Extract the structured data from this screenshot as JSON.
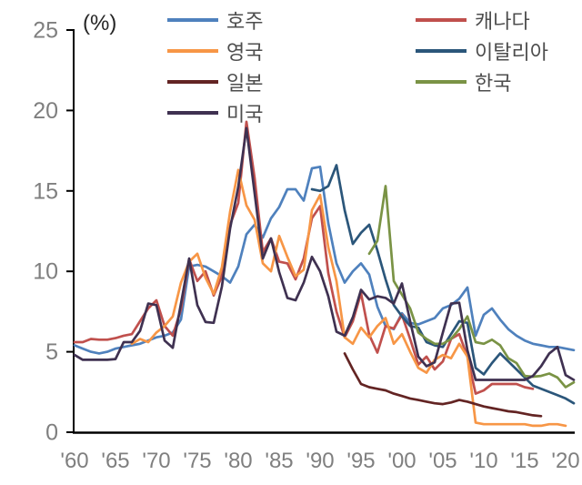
{
  "chart_data": {
    "type": "line",
    "title": "",
    "y_axis": {
      "unit_label": "(%)",
      "min": 0,
      "max": 25,
      "ticks": [
        0,
        5,
        10,
        15,
        20,
        25
      ]
    },
    "x_axis": {
      "tick_labels": [
        "'60",
        "'65",
        "'70",
        "'75",
        "'80",
        "'85",
        "'90",
        "'95",
        "'00",
        "'05",
        "'10",
        "'15",
        "'20"
      ],
      "tick_years": [
        1960,
        1965,
        1970,
        1975,
        1980,
        1985,
        1990,
        1995,
        2000,
        2005,
        2010,
        2015,
        2020
      ],
      "range": [
        1960,
        2021
      ]
    },
    "series": [
      {
        "id": "australia",
        "name": "호주",
        "color": "#4F81BD",
        "start_year": 1960,
        "values": [
          5.4,
          5.2,
          5.0,
          4.9,
          5.0,
          5.2,
          5.3,
          5.4,
          5.5,
          5.7,
          5.9,
          6.0,
          6.2,
          7.0,
          10.3,
          10.4,
          10.3,
          10.0,
          9.7,
          9.3,
          10.3,
          12.3,
          12.9,
          12.1,
          13.3,
          14.0,
          15.1,
          15.1,
          14.4,
          16.4,
          16.5,
          13.0,
          10.5,
          9.3,
          10.0,
          10.5,
          9.8,
          7.8,
          6.6,
          6.4,
          7.4,
          6.8,
          6.7,
          6.9,
          7.1,
          7.7,
          7.9,
          8.3,
          9.0,
          6.0,
          7.3,
          7.7,
          7.0,
          6.4,
          6.0,
          5.7,
          5.5,
          5.4,
          5.3,
          5.3,
          5.2,
          5.1
        ]
      },
      {
        "id": "canada",
        "name": "캐나다",
        "color": "#C0504D",
        "start_year": 1960,
        "values": [
          5.6,
          5.6,
          5.8,
          5.75,
          5.75,
          5.85,
          6.0,
          6.1,
          6.9,
          7.7,
          8.2,
          6.6,
          6.0,
          7.65,
          10.75,
          9.4,
          10.0,
          8.5,
          9.7,
          12.9,
          14.25,
          19.3,
          15.8,
          11.2,
          12.05,
          10.6,
          10.5,
          9.5,
          10.8,
          13.3,
          14.05,
          9.9,
          7.5,
          5.9,
          6.9,
          8.65,
          6.05,
          4.95,
          6.6,
          6.45,
          7.3,
          5.8,
          4.2,
          4.7,
          3.9,
          4.4,
          5.8,
          6.1,
          4.7,
          2.4,
          2.6,
          3.0,
          3.0,
          3.0,
          3.0,
          2.8,
          2.7
        ]
      },
      {
        "id": "uk",
        "name": "영국",
        "color": "#F79646",
        "start_year": 1967,
        "values": [
          5.5,
          5.8,
          5.6,
          6.2,
          6.6,
          7.2,
          9.3,
          10.6,
          11.1,
          9.6,
          8.6,
          10.25,
          13.7,
          16.3,
          14.1,
          13.2,
          10.5,
          10.0,
          12.2,
          10.9,
          9.7,
          10.1,
          13.8,
          14.75,
          11.5,
          9.4,
          5.9,
          5.5,
          6.5,
          5.9,
          6.6,
          7.1,
          5.5,
          6.1,
          5.0,
          4.0,
          3.7,
          4.5,
          4.8,
          4.6,
          5.5,
          4.7,
          0.6,
          0.5,
          0.5,
          0.5,
          0.5,
          0.5,
          0.5,
          0.4,
          0.4,
          0.5,
          0.5,
          0.4
        ]
      },
      {
        "id": "italy",
        "name": "이탈리아",
        "color": "#2B567A",
        "start_year": 1989,
        "values": [
          15.1,
          15.0,
          15.3,
          16.6,
          13.8,
          11.7,
          12.4,
          12.9,
          11.3,
          9.5,
          7.9,
          7.2,
          6.6,
          6.5,
          5.6,
          5.4,
          5.3,
          6.1,
          6.9,
          6.8,
          4.0,
          3.6,
          4.3,
          4.9,
          4.4,
          3.9,
          3.4,
          2.9,
          2.7,
          2.5,
          2.3,
          2.1,
          1.8
        ]
      },
      {
        "id": "japan",
        "name": "일본",
        "color": "#632423",
        "start_year": 1993,
        "values": [
          4.9,
          3.9,
          3.0,
          2.8,
          2.7,
          2.6,
          2.4,
          2.25,
          2.1,
          2.0,
          1.9,
          1.8,
          1.75,
          1.85,
          2.0,
          1.9,
          1.75,
          1.6,
          1.5,
          1.4,
          1.3,
          1.25,
          1.15,
          1.05,
          1.0
        ]
      },
      {
        "id": "korea",
        "name": "한국",
        "color": "#7A9345",
        "start_year": 1996,
        "values": [
          11.1,
          11.9,
          15.3,
          9.4,
          8.55,
          7.7,
          6.2,
          5.8,
          5.5,
          5.5,
          5.8,
          6.4,
          7.2,
          5.6,
          5.5,
          5.75,
          5.4,
          4.6,
          4.3,
          3.5,
          3.45,
          3.5,
          3.65,
          3.4,
          2.8,
          3.1
        ]
      },
      {
        "id": "usa",
        "name": "미국",
        "color": "#3F3151",
        "start_year": 1960,
        "values": [
          4.8,
          4.5,
          4.5,
          4.5,
          4.5,
          4.55,
          5.6,
          5.6,
          6.3,
          8.0,
          7.9,
          5.7,
          5.25,
          8.0,
          10.8,
          7.9,
          6.85,
          6.8,
          9.05,
          12.65,
          15.25,
          18.9,
          14.85,
          10.8,
          12.05,
          9.95,
          8.35,
          8.2,
          9.3,
          10.9,
          10.0,
          8.45,
          6.25,
          6.0,
          7.15,
          8.85,
          8.25,
          8.45,
          8.35,
          8.0,
          9.25,
          6.9,
          4.7,
          4.1,
          4.35,
          6.2,
          8.0,
          8.05,
          5.1,
          3.25,
          3.25,
          3.25,
          3.25,
          3.25,
          3.25,
          3.25,
          3.5,
          4.1,
          4.9,
          5.3,
          3.55,
          3.25
        ]
      }
    ],
    "legend": {
      "position": "top",
      "column1_series": [
        0,
        2,
        4,
        6
      ],
      "column2_series": [
        1,
        3,
        5
      ]
    },
    "colors": {
      "axis_line": "#000000",
      "axis_text": "#7F7F7F",
      "unit_text": "#262626",
      "legend_text": "#4D4D4D",
      "background": "#FFFFFF"
    },
    "grid": "off"
  }
}
